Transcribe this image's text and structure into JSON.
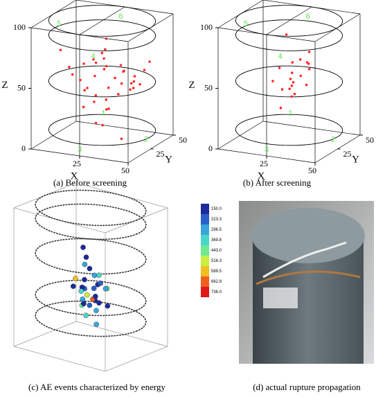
{
  "chart_data": [
    {
      "type": "scatter3d",
      "caption": "(a) Before screening",
      "xlabel": "X",
      "ylabel": "Y",
      "zlabel": "Z",
      "color": "#ff2a2a",
      "xlim": [
        0,
        50
      ],
      "ylim": [
        0,
        50
      ],
      "zlim": [
        0,
        100
      ],
      "xticks": [
        25,
        50
      ],
      "yticks": [
        25,
        50
      ],
      "zticks": [
        0,
        50,
        100
      ],
      "x": [
        12,
        30,
        22,
        40,
        18,
        35,
        8,
        27,
        45,
        15,
        33,
        20,
        38,
        25,
        10,
        42,
        28,
        16,
        36,
        24,
        31,
        19,
        44,
        13,
        26,
        39,
        21,
        34,
        29,
        17,
        41,
        23,
        11,
        37,
        32,
        14,
        43,
        27,
        22,
        35
      ],
      "y": [
        20,
        35,
        12,
        28,
        40,
        8,
        25,
        45,
        18,
        30,
        22,
        38,
        15,
        27,
        33,
        10,
        42,
        24,
        36,
        19,
        5,
        29,
        31,
        44,
        16,
        26,
        37,
        13,
        21,
        47,
        23,
        34,
        9,
        41,
        17,
        28,
        39,
        11,
        32,
        25
      ],
      "z": [
        55,
        60,
        48,
        52,
        65,
        45,
        58,
        50,
        62,
        40,
        56,
        53,
        47,
        68,
        44,
        59,
        51,
        63,
        42,
        57,
        49,
        30,
        61,
        54,
        20,
        46,
        70,
        35,
        88,
        15,
        53,
        58,
        80,
        43,
        50,
        25,
        64,
        75,
        10,
        5
      ],
      "sensors": [
        {
          "label": "1",
          "x": 35,
          "y": 5,
          "z": 35
        },
        {
          "label": "2",
          "x": 50,
          "y": 20,
          "z": 10
        },
        {
          "label": "3",
          "x": 25,
          "y": 0,
          "z": 5
        },
        {
          "label": "4",
          "x": 25,
          "y": 15,
          "z": 75
        },
        {
          "label": "5",
          "x": 5,
          "y": 20,
          "z": 95
        },
        {
          "label": "6",
          "x": 30,
          "y": 35,
          "z": 100
        }
      ]
    },
    {
      "type": "scatter3d",
      "caption": "(b) After screening",
      "xlabel": "X",
      "ylabel": "Y",
      "zlabel": "Z",
      "color": "#ff2a2a",
      "xlim": [
        0,
        50
      ],
      "ylim": [
        0,
        50
      ],
      "zlim": [
        0,
        100
      ],
      "xticks": [
        25,
        50
      ],
      "yticks": [
        25,
        50
      ],
      "zticks": [
        0,
        50,
        100
      ],
      "x": [
        20,
        28,
        32,
        25,
        18,
        35,
        30,
        22,
        27,
        33,
        24,
        29,
        21,
        36,
        26,
        31,
        23,
        34,
        28,
        25
      ],
      "y": [
        25,
        20,
        30,
        28,
        22,
        26,
        18,
        32,
        24,
        27,
        30,
        21,
        26,
        23,
        29,
        25,
        20,
        28,
        31,
        22
      ],
      "z": [
        60,
        55,
        65,
        45,
        50,
        62,
        70,
        40,
        58,
        48,
        35,
        52,
        42,
        68,
        38,
        56,
        30,
        75,
        66,
        90
      ],
      "sensors": [
        {
          "label": "1",
          "x": 35,
          "y": 5,
          "z": 35
        },
        {
          "label": "2",
          "x": 50,
          "y": 20,
          "z": 10
        },
        {
          "label": "3",
          "x": 25,
          "y": 0,
          "z": 5
        },
        {
          "label": "4",
          "x": 25,
          "y": 15,
          "z": 75
        },
        {
          "label": "5",
          "x": 5,
          "y": 20,
          "z": 95
        },
        {
          "label": "6",
          "x": 30,
          "y": 35,
          "z": 100
        }
      ]
    },
    {
      "type": "bubble3d",
      "caption": "(c) AE events characterized by energy",
      "xlim": [
        -30,
        30
      ],
      "ylim": [
        -30,
        30
      ],
      "zlim": [
        0,
        100
      ],
      "colorbar": {
        "ticks": [
          {
            "value": 150,
            "label": "150.0"
          },
          {
            "value": 223.3,
            "label": "223.3"
          },
          {
            "value": 296.5,
            "label": "296.5"
          },
          {
            "value": 369.8,
            "label": "369.8"
          },
          {
            "value": 443,
            "label": "443.0"
          },
          {
            "value": 516.3,
            "label": "516.3"
          },
          {
            "value": 589.5,
            "label": "589.5"
          },
          {
            "value": 662.8,
            "label": "662.8"
          },
          {
            "value": 736,
            "label": "736.0"
          }
        ],
        "colors": [
          "#1c2a9c",
          "#2a5fc8",
          "#3aa4d8",
          "#48d6c8",
          "#6fe890",
          "#c8f040",
          "#f0c020",
          "#f06020",
          "#e01818"
        ]
      },
      "x": [
        -5,
        2,
        -8,
        4,
        0,
        -3,
        6,
        -10,
        3,
        -6,
        8,
        -2,
        5,
        -7,
        1,
        -4,
        7,
        -9,
        2,
        -1,
        4,
        -6,
        9,
        -3,
        0,
        5,
        -8,
        3,
        -5,
        1
      ],
      "y": [
        3,
        -4,
        6,
        2,
        -6,
        8,
        -2,
        0,
        5,
        -8,
        4,
        -3,
        7,
        2,
        -5,
        9,
        -6,
        4,
        -1,
        6,
        -7,
        1,
        3,
        -4,
        8,
        -2,
        5,
        -9,
        0,
        4
      ],
      "z": [
        62,
        58,
        55,
        52,
        50,
        48,
        47,
        46,
        45,
        44,
        43,
        42,
        41,
        40,
        39,
        38,
        37,
        36,
        35,
        34,
        33,
        32,
        31,
        30,
        29,
        28,
        27,
        26,
        70,
        15
      ],
      "energy": [
        160,
        180,
        300,
        420,
        200,
        350,
        170,
        600,
        260,
        190,
        450,
        230,
        310,
        170,
        520,
        280,
        210,
        380,
        700,
        190,
        250,
        330,
        160,
        470,
        220,
        300,
        180,
        400,
        200,
        330
      ]
    },
    {
      "type": "image",
      "caption": "(d) actual rupture propagation"
    }
  ]
}
